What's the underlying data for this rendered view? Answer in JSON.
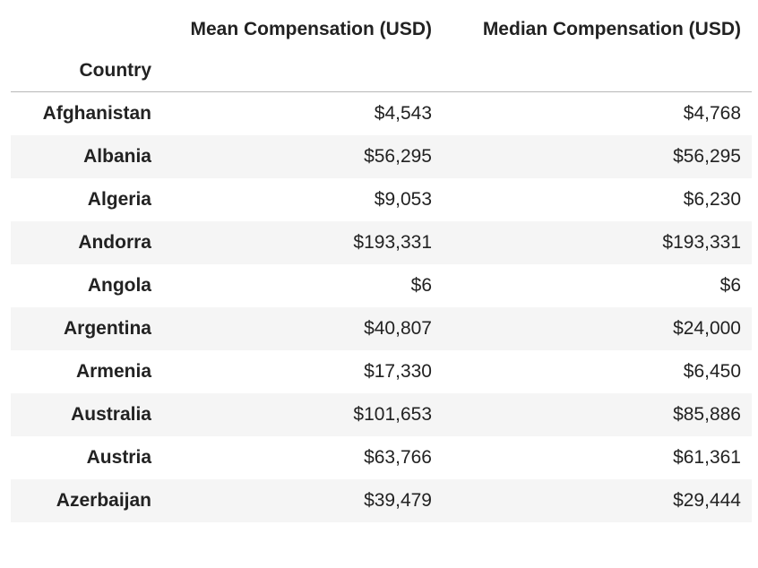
{
  "table": {
    "columns": [
      "Mean Compensation (USD)",
      "Median Compensation (USD)"
    ],
    "index_name": "Country",
    "rows": [
      {
        "country": "Afghanistan",
        "mean": "$4,543",
        "median": "$4,768"
      },
      {
        "country": "Albania",
        "mean": "$56,295",
        "median": "$56,295"
      },
      {
        "country": "Algeria",
        "mean": "$9,053",
        "median": "$6,230"
      },
      {
        "country": "Andorra",
        "mean": "$193,331",
        "median": "$193,331"
      },
      {
        "country": "Angola",
        "mean": "$6",
        "median": "$6"
      },
      {
        "country": "Argentina",
        "mean": "$40,807",
        "median": "$24,000"
      },
      {
        "country": "Armenia",
        "mean": "$17,330",
        "median": "$6,450"
      },
      {
        "country": "Australia",
        "mean": "$101,653",
        "median": "$85,886"
      },
      {
        "country": "Austria",
        "mean": "$63,766",
        "median": "$61,361"
      },
      {
        "country": "Azerbaijan",
        "mean": "$39,479",
        "median": "$29,444"
      }
    ]
  }
}
